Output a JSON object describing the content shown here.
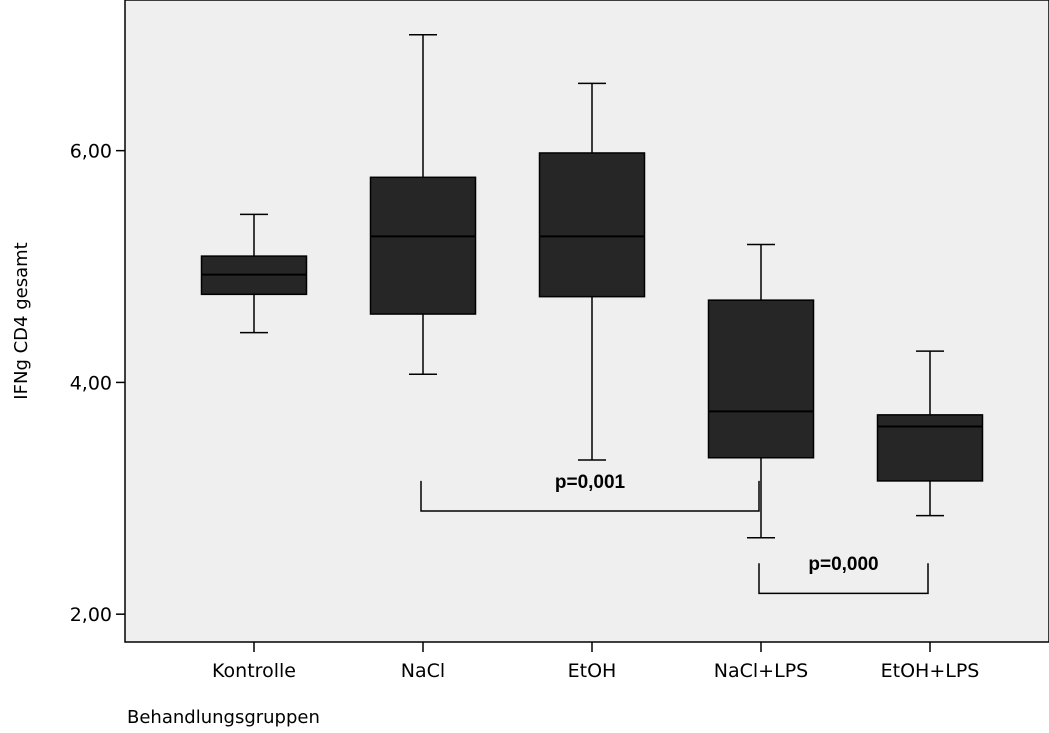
{
  "chart_data": {
    "type": "boxplot",
    "title": "",
    "xlabel": "Behandlungsgruppen",
    "ylabel": "IFNg CD4 gesamt",
    "ylim": [
      1.76,
      7.3
    ],
    "yticks": [
      2.0,
      4.0,
      6.0
    ],
    "ytick_labels": [
      "2,00",
      "4,00",
      "6,00"
    ],
    "grid": false,
    "legend": "none",
    "box_color": "#262626",
    "plot_background": "#efefef",
    "categories": [
      "Kontrolle",
      "NaCl",
      "EtOH",
      "NaCl+LPS",
      "EtOH+LPS"
    ],
    "boxes": [
      {
        "category": "Kontrolle",
        "whisker_low": 4.43,
        "q1": 4.76,
        "median": 4.93,
        "q3": 5.09,
        "whisker_high": 5.45
      },
      {
        "category": "NaCl",
        "whisker_low": 4.07,
        "q1": 4.59,
        "median": 5.26,
        "q3": 5.77,
        "whisker_high": 7.0
      },
      {
        "category": "EtOH",
        "whisker_low": 3.33,
        "q1": 4.74,
        "median": 5.26,
        "q3": 5.98,
        "whisker_high": 6.58
      },
      {
        "category": "NaCl+LPS",
        "whisker_low": 2.66,
        "q1": 3.35,
        "median": 3.75,
        "q3": 4.71,
        "whisker_high": 5.19
      },
      {
        "category": "EtOH+LPS",
        "whisker_low": 2.85,
        "q1": 3.15,
        "median": 3.62,
        "q3": 3.72,
        "whisker_high": 4.27
      }
    ],
    "annotations": [
      {
        "label": "p=0,001",
        "from": "NaCl",
        "to": "NaCl+LPS",
        "y_top": 3.15,
        "y_bottom": 2.89
      },
      {
        "label": "p=0,000",
        "from": "NaCl+LPS",
        "to": "EtOH+LPS",
        "y_top": 2.44,
        "y_bottom": 2.18
      }
    ]
  }
}
